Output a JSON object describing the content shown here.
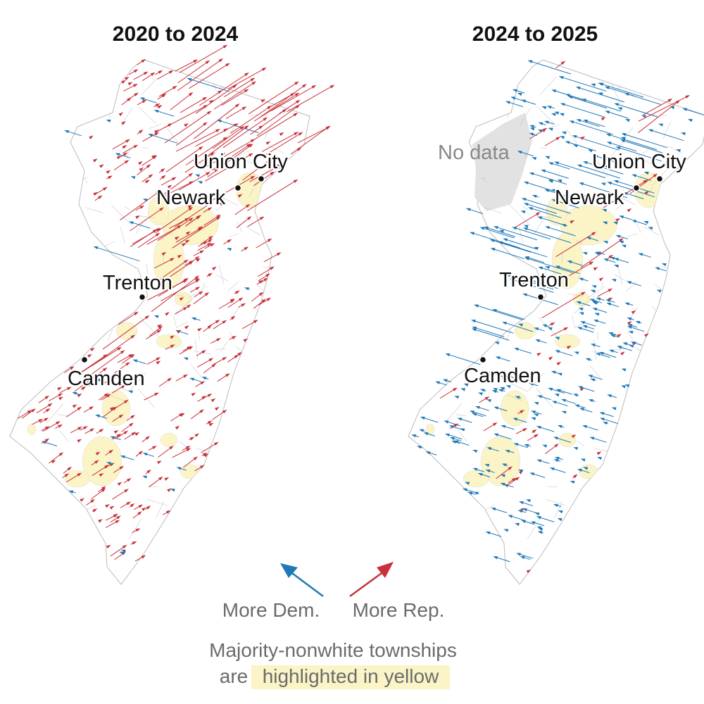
{
  "panels": [
    {
      "title": "2020 to 2024",
      "cities": [
        "Union City",
        "Newark",
        "Trenton",
        "Camden"
      ],
      "dominant_shift": "rep"
    },
    {
      "title": "2024 to 2025",
      "cities": [
        "Union City",
        "Newark",
        "Trenton",
        "Camden"
      ],
      "dominant_shift": "dem",
      "no_data_label": "No data"
    }
  ],
  "legend": {
    "dem_label": "More Dem.",
    "rep_label": "More Rep.",
    "note_line1": "Majority-nonwhite townships",
    "note_line2_prefix": "are",
    "note_line2_highlight": "highlighted in yellow"
  },
  "colors": {
    "dem": "#1f78b8",
    "rep": "#c8313a",
    "highlight": "#fbf4c6",
    "no_data": "#e2e2e2",
    "border": "#c8c8c8",
    "text_gray": "#6b6b6b"
  }
}
